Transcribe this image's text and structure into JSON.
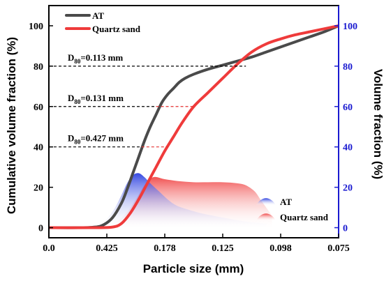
{
  "chart_data": {
    "type": "line",
    "xlabel": "Particle size (mm)",
    "ylabel_left": "Cumulative volume fraction (%)",
    "ylabel_right": "Volume fraction (%)",
    "x_tick_labels": [
      "0.0",
      "0.425",
      "0.178",
      "0.125",
      "0.098",
      "0.075"
    ],
    "y_left_ticks": [
      0,
      20,
      40,
      60,
      80,
      100
    ],
    "y_right_ticks": [
      0,
      20,
      40,
      60,
      80,
      100
    ],
    "ylim_left": [
      -5,
      110
    ],
    "ylim_right": [
      -5,
      110
    ],
    "xlim": [
      0,
      1
    ],
    "legend_position": "top-left",
    "legend2_position": "bottom-right",
    "colors": {
      "AT": "#4a4a4a",
      "Quartz sand": "#ef3b3b",
      "AT_distribution": "#2a3fe0",
      "Quartz_distribution": "#f04848",
      "right_axis": "#1a1ad0"
    },
    "series": [
      {
        "name": "AT",
        "kind": "cumulative",
        "color": "#4a4a4a",
        "x": [
          0,
          0.1,
          0.16,
          0.19,
          0.22,
          0.25,
          0.27,
          0.29,
          0.31,
          0.33,
          0.35,
          0.37,
          0.39,
          0.41,
          0.43,
          0.45,
          0.47,
          0.5,
          0.55,
          0.6,
          0.65,
          0.7,
          0.75,
          0.8,
          0.85,
          0.9,
          0.95,
          1.0
        ],
        "y": [
          0,
          0,
          0.3,
          1.5,
          5,
          12,
          19,
          27,
          35,
          43,
          50,
          56,
          62,
          66,
          69,
          72,
          74,
          76,
          78.5,
          80.5,
          82.5,
          84.5,
          87,
          89.5,
          92,
          94.5,
          97,
          100
        ]
      },
      {
        "name": "Quartz sand",
        "kind": "cumulative",
        "color": "#ef3b3b",
        "x": [
          0,
          0.16,
          0.22,
          0.25,
          0.28,
          0.31,
          0.34,
          0.37,
          0.4,
          0.43,
          0.46,
          0.5,
          0.55,
          0.6,
          0.65,
          0.7,
          0.75,
          0.8,
          0.85,
          0.9,
          0.95,
          1.0
        ],
        "y": [
          0,
          0,
          0.3,
          2,
          7,
          14,
          22,
          30,
          38,
          45,
          52,
          60,
          67,
          74,
          81,
          87,
          91,
          93.5,
          95.5,
          97,
          98.5,
          100
        ]
      },
      {
        "name": "AT",
        "kind": "distribution",
        "color": "#2a3fe0",
        "x": [
          0.12,
          0.18,
          0.22,
          0.25,
          0.27,
          0.29,
          0.31,
          0.33,
          0.35,
          0.38,
          0.41,
          0.44,
          0.48,
          0.53,
          0.6,
          0.68,
          0.75
        ],
        "y": [
          0,
          2,
          8,
          16,
          22,
          26,
          27,
          25,
          22,
          18,
          14,
          11,
          9,
          7,
          5,
          3,
          2
        ]
      },
      {
        "name": "Quartz sand",
        "kind": "distribution",
        "color": "#f04848",
        "x": [
          0.2,
          0.26,
          0.3,
          0.33,
          0.36,
          0.4,
          0.45,
          0.5,
          0.55,
          0.6,
          0.65,
          0.68,
          0.71,
          0.73,
          0.75,
          0.77
        ],
        "y": [
          0,
          6,
          14,
          21,
          25,
          24,
          23,
          22.5,
          22.5,
          22.5,
          22,
          21,
          18,
          14,
          10,
          6
        ]
      }
    ],
    "annotations": [
      {
        "text": "D",
        "sub": "80",
        "tail": "=0.113 mm",
        "y": 80,
        "x_end_black": 0.68,
        "x_end_red": null
      },
      {
        "text": "D",
        "sub": "80",
        "tail": "=0.131 mm",
        "y": 60,
        "x_end_black": 0.37,
        "x_end_red": 0.5
      },
      {
        "text": "D",
        "sub": "80",
        "tail": "=0.427 mm",
        "y": 40,
        "x_end_black": 0.32,
        "x_end_red": 0.41
      }
    ],
    "legend_top": [
      {
        "label": "AT",
        "color": "#4a4a4a"
      },
      {
        "label": "Quartz sand",
        "color": "#ef3b3b"
      }
    ],
    "legend_bottom": [
      {
        "label": "AT",
        "color": "#2a3fe0"
      },
      {
        "label": "Quartz sand",
        "color": "#f04848"
      }
    ]
  }
}
